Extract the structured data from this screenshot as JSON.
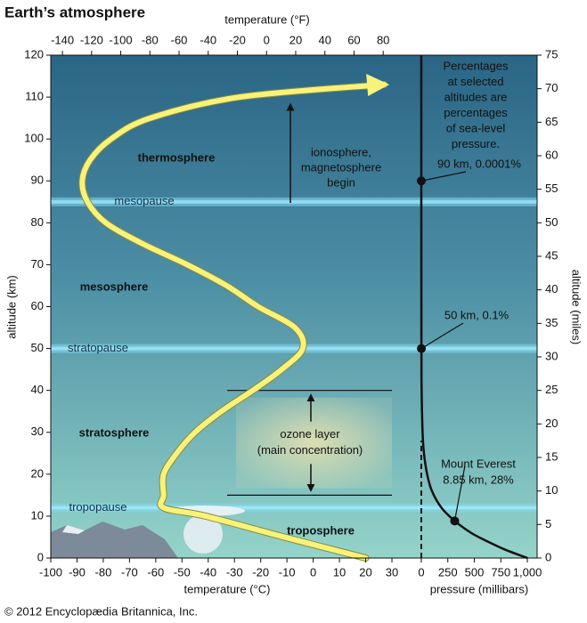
{
  "title": "Earth’s atmosphere",
  "copyright": "© 2012 Encyclopædia Britannica, Inc.",
  "chart_data": [
    {
      "type": "line",
      "x_label": "temperature (°C)",
      "x2_label": "temperature (°F)",
      "y_label": "altitude (km)",
      "xlim": [
        -100,
        30
      ],
      "xticks": [
        -100,
        -90,
        -80,
        -70,
        -60,
        -50,
        -40,
        -30,
        -20,
        -10,
        0,
        10,
        20,
        30
      ],
      "x2lim": [
        -148,
        86
      ],
      "x2ticks": [
        -140,
        -120,
        -100,
        -80,
        -60,
        -40,
        -20,
        0,
        20,
        40,
        60,
        80
      ],
      "ylim": [
        0,
        120
      ],
      "yticks": [
        0,
        10,
        20,
        30,
        40,
        50,
        60,
        70,
        80,
        90,
        100,
        110,
        120
      ],
      "color": "#f7f27a",
      "x": [
        20,
        -11,
        -41,
        -57,
        -57,
        -57,
        -52,
        -45,
        -35,
        -23,
        -12,
        -4,
        -7,
        -21,
        -33,
        -48,
        -65,
        -79,
        -86,
        -88,
        -85,
        -77,
        -62,
        -28,
        27
      ],
      "values": [
        0,
        5,
        10,
        12,
        15,
        20,
        25,
        30,
        35,
        40,
        45,
        50,
        55,
        60,
        65,
        70,
        75,
        80,
        85,
        90,
        95,
        100,
        105,
        110,
        113
      ],
      "layers": [
        "thermosphere",
        "mesosphere",
        "stratosphere",
        "troposphere"
      ],
      "boundaries": [
        {
          "label": "mesopause",
          "altitude": 85
        },
        {
          "label": "stratopause",
          "altitude": 50
        },
        {
          "label": "tropopause",
          "altitude": 12
        }
      ],
      "ionosphere": [
        "ionosphere,",
        "magnetosphere",
        "begin"
      ],
      "ozone": {
        "label": [
          "ozone layer",
          "(main concentration)"
        ],
        "range": [
          15,
          40
        ]
      }
    },
    {
      "type": "line",
      "x_label": "pressure (millibars)",
      "y2_label": "altitude (miles)",
      "xlim": [
        -277,
        1092
      ],
      "xticks": [
        0,
        250,
        500,
        750,
        {
          "value": 1000,
          "label": "1,000"
        }
      ],
      "ylim": [
        0,
        120
      ],
      "y2lim": [
        0,
        75
      ],
      "y2ticks": [
        0,
        5,
        10,
        15,
        20,
        25,
        30,
        35,
        40,
        45,
        50,
        55,
        60,
        65,
        70,
        75
      ],
      "color": "#111111",
      "x": [
        1000,
        790,
        620,
        470,
        315,
        190,
        100,
        55,
        25,
        12,
        3,
        1,
        0.001,
        0
      ],
      "values": [
        0,
        2,
        4,
        6,
        8.85,
        12,
        16,
        20,
        25,
        30,
        40,
        50,
        90,
        120
      ],
      "points": [
        {
          "altitude": 90,
          "pressure": 0.001,
          "label": [
            "90 km, 0.0001%"
          ]
        },
        {
          "altitude": 50,
          "pressure": 1,
          "label": [
            "50 km, 0.1%"
          ]
        },
        {
          "altitude": 8.85,
          "pressure": 315,
          "label": [
            "Mount Everest",
            "8.85 km, 28%"
          ]
        }
      ],
      "note": [
        "Percentages",
        "at selected",
        "altitudes are",
        "percentages",
        "of sea-level",
        "pressure."
      ]
    }
  ]
}
